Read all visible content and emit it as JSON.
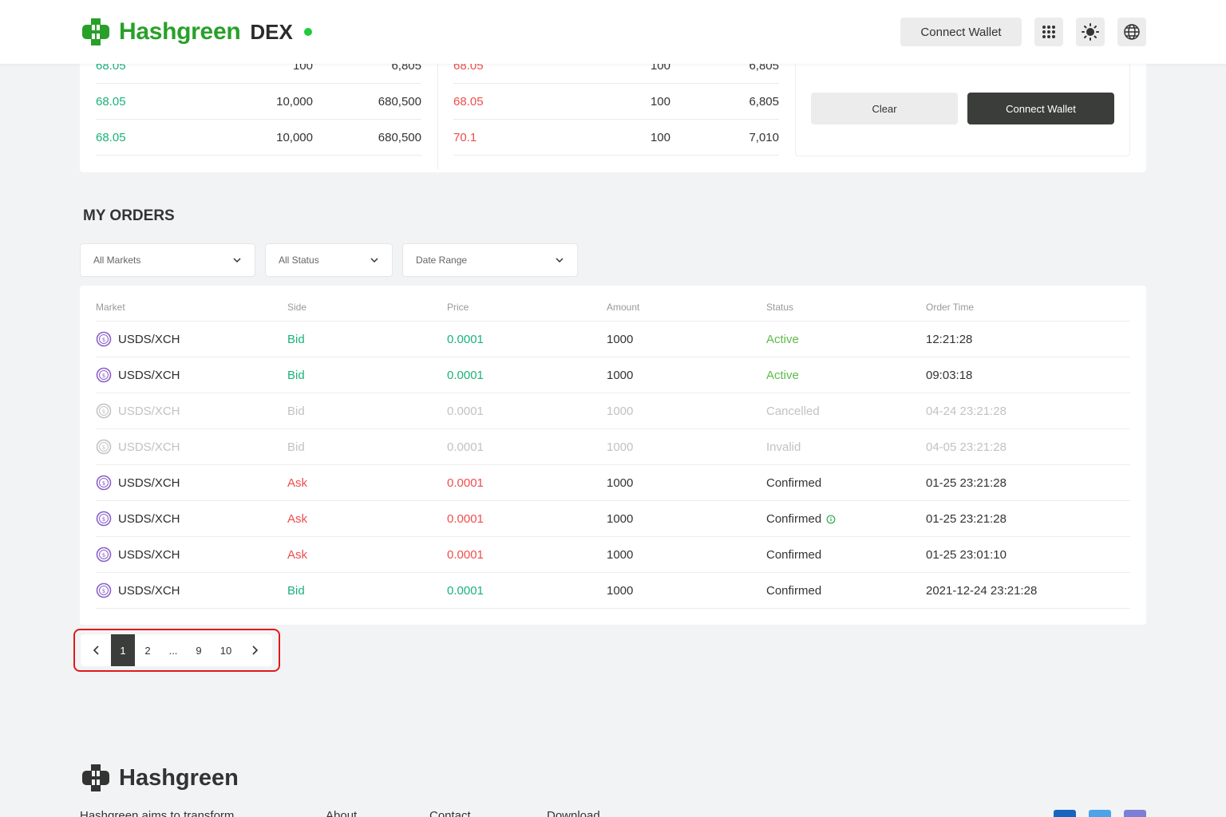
{
  "header": {
    "brand": "Hashgreen",
    "product": "DEX",
    "connect_label": "Connect Wallet",
    "icons": [
      "apps-grid-icon",
      "sun-icon",
      "globe-icon"
    ]
  },
  "orderbook": {
    "bids": [
      {
        "price": "68.05",
        "qty": "100",
        "total": "6,805"
      },
      {
        "price": "68.05",
        "qty": "10,000",
        "total": "680,500"
      },
      {
        "price": "68.05",
        "qty": "10,000",
        "total": "680,500"
      }
    ],
    "asks": [
      {
        "price": "68.05",
        "qty": "100",
        "total": "6,805"
      },
      {
        "price": "68.05",
        "qty": "100",
        "total": "6,805"
      },
      {
        "price": "70.1",
        "qty": "100",
        "total": "7,010"
      }
    ],
    "clear_label": "Clear",
    "connect_label": "Connect Wallet"
  },
  "my_orders": {
    "title": "MY ORDERS",
    "filters": {
      "markets": "All Markets",
      "status": "All Status",
      "date": "Date Range"
    },
    "columns": [
      "Market",
      "Side",
      "Price",
      "Amount",
      "Status",
      "Order Time"
    ],
    "rows": [
      {
        "market": "USDS/XCH",
        "side": "Bid",
        "price": "0.0001",
        "amount": "1000",
        "status": "Active",
        "time": "12:21:28",
        "state": "active"
      },
      {
        "market": "USDS/XCH",
        "side": "Bid",
        "price": "0.0001",
        "amount": "1000",
        "status": "Active",
        "time": "09:03:18",
        "state": "active"
      },
      {
        "market": "USDS/XCH",
        "side": "Bid",
        "price": "0.0001",
        "amount": "1000",
        "status": "Cancelled",
        "time": "04-24  23:21:28",
        "state": "muted"
      },
      {
        "market": "USDS/XCH",
        "side": "Bid",
        "price": "0.0001",
        "amount": "1000",
        "status": "Invalid",
        "time": "04-05  23:21:28",
        "state": "muted"
      },
      {
        "market": "USDS/XCH",
        "side": "Ask",
        "price": "0.0001",
        "amount": "1000",
        "status": "Confirmed",
        "time": "01-25  23:21:28",
        "state": "confirmed"
      },
      {
        "market": "USDS/XCH",
        "side": "Ask",
        "price": "0.0001",
        "amount": "1000",
        "status": "Confirmed",
        "time": "01-25  23:21:28",
        "state": "confirmed",
        "info": true
      },
      {
        "market": "USDS/XCH",
        "side": "Ask",
        "price": "0.0001",
        "amount": "1000",
        "status": "Confirmed",
        "time": "01-25  23:01:10",
        "state": "confirmed"
      },
      {
        "market": "USDS/XCH",
        "side": "Bid",
        "price": "0.0001",
        "amount": "1000",
        "status": "Confirmed",
        "time": "2021-12-24  23:21:28",
        "state": "confirmed"
      }
    ]
  },
  "pagination": {
    "prev": "‹",
    "pages": [
      "1",
      "2",
      "...",
      "9",
      "10"
    ],
    "active": "1",
    "next": "›"
  },
  "footer": {
    "brand": "Hashgreen",
    "tagline": "Hashgreen aims to transform",
    "links": [
      "About",
      "Contact",
      "Download"
    ]
  },
  "colors": {
    "brand_green": "#29a029",
    "bid_green": "#1ab27a",
    "ask_red": "#ee4d4d",
    "active_green": "#5dbb4a",
    "dark_button": "#3a3d3a",
    "highlight_red": "#e01a1a"
  }
}
